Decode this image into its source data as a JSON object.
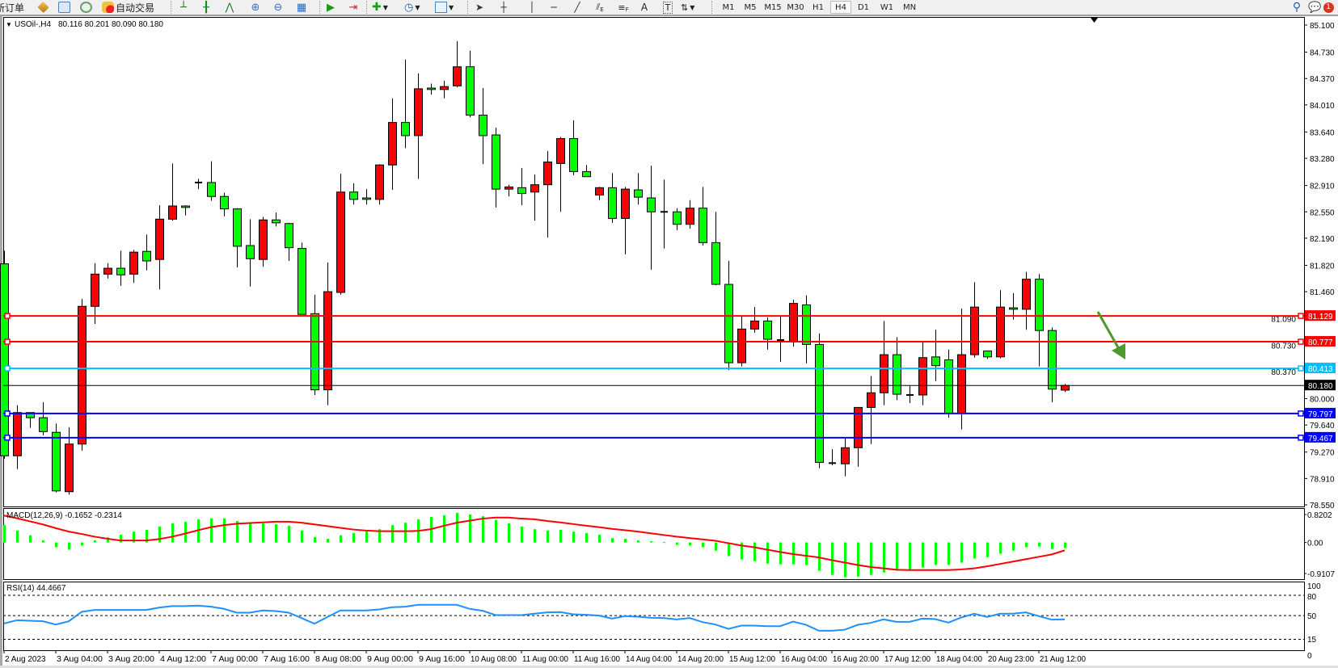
{
  "toolbar": {
    "new_order": "新订单",
    "autotrading": "自动交易",
    "icons": [
      "market-watch-icon",
      "data-window-icon",
      "signals-icon",
      "autotrading-icon",
      "bar-chart-icon",
      "candlestick-icon",
      "line-chart-icon",
      "zoom-in-icon",
      "zoom-out-icon",
      "tile-windows-icon",
      "auto-scroll-icon",
      "chart-shift-icon",
      "indicators-icon",
      "periods-icon",
      "templates-icon",
      "cursor-icon",
      "crosshair-icon",
      "vertical-line-icon",
      "horizontal-line-icon",
      "trendline-icon",
      "fibo-channel-icon",
      "fibo-retracement-icon",
      "text-icon",
      "text-label-icon",
      "arrows-icon",
      "search-icon",
      "notifications-icon"
    ],
    "text_tool": "A",
    "label_tool": "T",
    "fibo_e": "E",
    "fibo_f": "F",
    "timeframes": [
      "M1",
      "M5",
      "M15",
      "M30",
      "H1",
      "H4",
      "D1",
      "W1",
      "MN"
    ],
    "active_timeframe": "H4",
    "notification_count": "1"
  },
  "header": {
    "collapse_glyph": "▼",
    "symbol": "USOil-,H4",
    "ohlc": "80.116 80.201 80.090 80.180"
  },
  "colors": {
    "bull": "#ff0000",
    "bear": "#00ff00",
    "resistance": "#ff0000",
    "pivot": "#00bfff",
    "support": "#0000ff",
    "current": "#000000",
    "macd_hist": "#00ff00",
    "macd_signal": "#ff0000",
    "rsi": "#1e90ff",
    "arrow": "#4c9a2a"
  },
  "chart_data": {
    "type": "candlestick",
    "symbol": "USOil-",
    "timeframe": "H4",
    "ylim": [
      78.55,
      85.1
    ],
    "price_axis": [
      "85.100",
      "84.730",
      "84.370",
      "84.010",
      "83.640",
      "83.280",
      "82.910",
      "82.550",
      "82.190",
      "81.820",
      "81.460",
      "81.090",
      "80.730",
      "80.370",
      "80.000",
      "79.640",
      "79.270",
      "78.910",
      "78.550"
    ],
    "time_labels": [
      {
        "index": 0,
        "label": "2 Aug 2023"
      },
      {
        "index": 4,
        "label": "3 Aug 04:00"
      },
      {
        "index": 8,
        "label": "3 Aug 20:00"
      },
      {
        "index": 12,
        "label": "4 Aug 12:00"
      },
      {
        "index": 16,
        "label": "7 Aug 00:00"
      },
      {
        "index": 20,
        "label": "7 Aug 16:00"
      },
      {
        "index": 24,
        "label": "8 Aug 08:00"
      },
      {
        "index": 28,
        "label": "9 Aug 00:00"
      },
      {
        "index": 32,
        "label": "9 Aug 16:00"
      },
      {
        "index": 36,
        "label": "10 Aug 08:00"
      },
      {
        "index": 40,
        "label": "11 Aug 00:00"
      },
      {
        "index": 44,
        "label": "11 Aug 16:00"
      },
      {
        "index": 48,
        "label": "14 Aug 04:00"
      },
      {
        "index": 52,
        "label": "14 Aug 20:00"
      },
      {
        "index": 56,
        "label": "15 Aug 12:00"
      },
      {
        "index": 60,
        "label": "16 Aug 04:00"
      },
      {
        "index": 64,
        "label": "16 Aug 20:00"
      },
      {
        "index": 68,
        "label": "17 Aug 12:00"
      },
      {
        "index": 72,
        "label": "18 Aug 04:00"
      },
      {
        "index": 76,
        "label": "20 Aug 23:00"
      },
      {
        "index": 80,
        "label": "21 Aug 12:00"
      }
    ],
    "ohlc": [
      [
        81.84,
        82.02,
        79.18,
        79.22
      ],
      [
        79.22,
        79.91,
        79.04,
        79.81
      ],
      [
        79.81,
        79.81,
        79.6,
        79.74
      ],
      [
        79.74,
        79.95,
        79.5,
        79.55
      ],
      [
        79.54,
        79.66,
        78.72,
        78.74
      ],
      [
        78.73,
        79.61,
        78.69,
        79.38
      ],
      [
        79.38,
        81.36,
        79.29,
        81.26
      ],
      [
        81.26,
        81.85,
        81.02,
        81.7
      ],
      [
        81.7,
        81.85,
        81.64,
        81.78
      ],
      [
        81.78,
        82.02,
        81.54,
        81.69
      ],
      [
        81.7,
        82.03,
        81.58,
        82.0
      ],
      [
        82.01,
        82.24,
        81.75,
        81.88
      ],
      [
        81.9,
        82.64,
        81.49,
        82.45
      ],
      [
        82.45,
        83.21,
        82.43,
        82.63
      ],
      [
        82.63,
        82.64,
        82.5,
        82.61
      ],
      [
        82.95,
        83.0,
        82.86,
        82.95
      ],
      [
        82.95,
        83.24,
        82.7,
        82.76
      ],
      [
        82.76,
        82.81,
        82.49,
        82.59
      ],
      [
        82.59,
        82.6,
        81.79,
        82.08
      ],
      [
        82.09,
        82.45,
        81.53,
        81.91
      ],
      [
        81.9,
        82.48,
        81.8,
        82.44
      ],
      [
        82.44,
        82.54,
        82.35,
        82.4
      ],
      [
        82.39,
        82.4,
        81.88,
        82.06
      ],
      [
        82.05,
        82.13,
        81.15,
        81.15
      ],
      [
        81.16,
        81.42,
        80.05,
        80.12
      ],
      [
        80.12,
        81.86,
        79.91,
        81.46
      ],
      [
        81.45,
        83.07,
        81.42,
        82.82
      ],
      [
        82.82,
        82.94,
        82.65,
        82.72
      ],
      [
        82.74,
        82.86,
        82.65,
        82.72
      ],
      [
        82.72,
        83.2,
        82.65,
        83.19
      ],
      [
        83.19,
        84.1,
        82.85,
        83.77
      ],
      [
        83.77,
        84.63,
        83.42,
        83.59
      ],
      [
        83.59,
        84.44,
        83.0,
        84.23
      ],
      [
        84.24,
        84.3,
        84.15,
        84.22
      ],
      [
        84.22,
        84.34,
        84.1,
        84.26
      ],
      [
        84.27,
        84.88,
        84.25,
        84.53
      ],
      [
        84.53,
        84.75,
        83.84,
        83.87
      ],
      [
        83.87,
        84.24,
        83.2,
        83.59
      ],
      [
        83.6,
        83.7,
        82.61,
        82.86
      ],
      [
        82.86,
        82.92,
        82.76,
        82.89
      ],
      [
        82.88,
        83.15,
        82.64,
        82.8
      ],
      [
        82.82,
        83.06,
        82.43,
        82.92
      ],
      [
        82.92,
        83.38,
        82.2,
        83.23
      ],
      [
        83.21,
        83.57,
        82.55,
        83.55
      ],
      [
        83.55,
        83.8,
        83.05,
        83.1
      ],
      [
        83.1,
        83.19,
        83.03,
        83.03
      ],
      [
        82.78,
        82.89,
        82.71,
        82.88
      ],
      [
        82.88,
        83.08,
        82.4,
        82.46
      ],
      [
        82.46,
        82.89,
        81.97,
        82.86
      ],
      [
        82.85,
        83.08,
        82.65,
        82.75
      ],
      [
        82.74,
        83.18,
        81.76,
        82.55
      ],
      [
        82.55,
        82.99,
        82.05,
        82.55
      ],
      [
        82.55,
        82.6,
        82.3,
        82.38
      ],
      [
        82.38,
        82.71,
        82.32,
        82.6
      ],
      [
        82.6,
        82.89,
        82.09,
        82.13
      ],
      [
        82.13,
        82.55,
        81.55,
        81.56
      ],
      [
        81.56,
        81.88,
        80.39,
        80.49
      ],
      [
        80.49,
        81.13,
        80.44,
        80.95
      ],
      [
        80.95,
        81.25,
        80.9,
        81.06
      ],
      [
        81.06,
        81.11,
        80.67,
        80.81
      ],
      [
        80.8,
        81.13,
        80.5,
        80.8
      ],
      [
        80.78,
        81.35,
        80.71,
        81.3
      ],
      [
        81.28,
        81.41,
        80.48,
        80.74
      ],
      [
        80.74,
        80.89,
        79.05,
        79.13
      ],
      [
        79.12,
        79.31,
        79.09,
        79.12
      ],
      [
        79.11,
        79.47,
        78.94,
        79.33
      ],
      [
        79.33,
        79.88,
        79.07,
        79.88
      ],
      [
        79.88,
        80.31,
        79.38,
        80.08
      ],
      [
        80.08,
        81.06,
        79.91,
        80.6
      ],
      [
        80.6,
        80.84,
        79.98,
        80.06
      ],
      [
        80.05,
        80.18,
        79.94,
        80.05
      ],
      [
        80.05,
        80.79,
        79.91,
        80.56
      ],
      [
        80.57,
        80.94,
        80.24,
        80.45
      ],
      [
        80.53,
        80.67,
        79.74,
        79.8
      ],
      [
        79.8,
        81.23,
        79.58,
        80.6
      ],
      [
        80.6,
        81.59,
        80.56,
        81.25
      ],
      [
        80.65,
        80.65,
        80.54,
        80.57
      ],
      [
        80.57,
        81.48,
        80.55,
        81.25
      ],
      [
        81.24,
        81.44,
        81.08,
        81.22
      ],
      [
        81.22,
        81.73,
        80.94,
        81.63
      ],
      [
        81.63,
        81.7,
        80.44,
        80.93
      ],
      [
        80.93,
        80.97,
        79.95,
        80.13
      ],
      [
        80.116,
        80.201,
        80.09,
        80.18
      ]
    ],
    "levels": [
      {
        "value": 81.129,
        "label": "81.129",
        "kind": "resistance"
      },
      {
        "value": 80.777,
        "label": "80.777",
        "kind": "resistance"
      },
      {
        "value": 80.413,
        "label": "80.413",
        "kind": "pivot"
      },
      {
        "value": 80.18,
        "label": "80.180",
        "kind": "current"
      },
      {
        "value": 79.797,
        "label": "79.797",
        "kind": "support"
      },
      {
        "value": 79.467,
        "label": "79.467",
        "kind": "support"
      }
    ],
    "macd": {
      "label": "MACD(12,26,9) -0.1652 -0.2314",
      "axis": [
        {
          "value": 0.8202,
          "label": "0.8202"
        },
        {
          "value": 0,
          "label": "0.00"
        },
        {
          "value": -0.9107,
          "label": "-0.9107"
        }
      ],
      "histogram": [
        0.51,
        0.35,
        0.21,
        0.06,
        -0.14,
        -0.21,
        -0.09,
        0.06,
        0.15,
        0.23,
        0.32,
        0.37,
        0.47,
        0.56,
        0.61,
        0.68,
        0.71,
        0.71,
        0.63,
        0.56,
        0.56,
        0.54,
        0.49,
        0.35,
        0.16,
        0.11,
        0.21,
        0.28,
        0.32,
        0.39,
        0.51,
        0.58,
        0.68,
        0.75,
        0.8,
        0.87,
        0.82,
        0.77,
        0.66,
        0.56,
        0.47,
        0.39,
        0.35,
        0.37,
        0.32,
        0.28,
        0.23,
        0.13,
        0.11,
        0.06,
        0.04,
        0.01,
        -0.07,
        -0.09,
        -0.14,
        -0.24,
        -0.4,
        -0.5,
        -0.55,
        -0.62,
        -0.64,
        -0.64,
        -0.66,
        -0.83,
        -0.95,
        -1.02,
        -1.0,
        -0.95,
        -0.88,
        -0.83,
        -0.81,
        -0.73,
        -0.66,
        -0.66,
        -0.59,
        -0.47,
        -0.43,
        -0.33,
        -0.24,
        -0.14,
        -0.12,
        -0.19,
        -0.1652
      ],
      "signal": [
        0.79,
        0.71,
        0.62,
        0.53,
        0.42,
        0.32,
        0.25,
        0.17,
        0.11,
        0.06,
        0.06,
        0.06,
        0.1,
        0.17,
        0.26,
        0.36,
        0.45,
        0.51,
        0.55,
        0.57,
        0.59,
        0.61,
        0.61,
        0.58,
        0.53,
        0.48,
        0.43,
        0.38,
        0.35,
        0.33,
        0.33,
        0.33,
        0.34,
        0.39,
        0.49,
        0.58,
        0.64,
        0.7,
        0.73,
        0.73,
        0.7,
        0.68,
        0.63,
        0.59,
        0.54,
        0.49,
        0.45,
        0.4,
        0.36,
        0.32,
        0.27,
        0.22,
        0.17,
        0.13,
        0.09,
        0.05,
        -0.02,
        -0.09,
        -0.14,
        -0.21,
        -0.28,
        -0.34,
        -0.39,
        -0.44,
        -0.52,
        -0.59,
        -0.66,
        -0.72,
        -0.76,
        -0.8,
        -0.81,
        -0.81,
        -0.81,
        -0.81,
        -0.79,
        -0.76,
        -0.7,
        -0.63,
        -0.56,
        -0.49,
        -0.42,
        -0.35,
        -0.2314
      ]
    },
    "rsi": {
      "label": "RSI(14) 44.4667",
      "axis": [
        {
          "value": 100,
          "label": "100"
        },
        {
          "value": 80,
          "label": "80"
        },
        {
          "value": 50,
          "label": "50"
        },
        {
          "value": 15,
          "label": "15"
        },
        {
          "value": 0,
          "label": "0"
        }
      ],
      "levels": [
        80,
        50,
        15
      ],
      "values": [
        38.4,
        43.2,
        42.4,
        41.6,
        36.8,
        41.6,
        55.6,
        58.4,
        58.4,
        58.4,
        58.4,
        58.4,
        62,
        64,
        64,
        64.8,
        63.2,
        60,
        54.4,
        54.4,
        57.6,
        56.8,
        54.4,
        46.4,
        38,
        48,
        57.6,
        57.6,
        57.6,
        59.2,
        62.4,
        63.2,
        66,
        66,
        66,
        66,
        60,
        57.2,
        50.8,
        50.8,
        50.8,
        52.8,
        54.8,
        55.2,
        52,
        51.2,
        50,
        45.6,
        49.2,
        48.4,
        46.8,
        46.4,
        44.4,
        46.4,
        40.4,
        36.8,
        30.4,
        35.2,
        35.2,
        34.4,
        34.4,
        41.2,
        36.4,
        27.6,
        27.6,
        29.2,
        36.4,
        39.2,
        44.4,
        40.8,
        40.8,
        45.6,
        44.8,
        39.6,
        47.2,
        52.8,
        48,
        52.8,
        52.8,
        54.8,
        49.2,
        44,
        44.4667
      ]
    }
  }
}
